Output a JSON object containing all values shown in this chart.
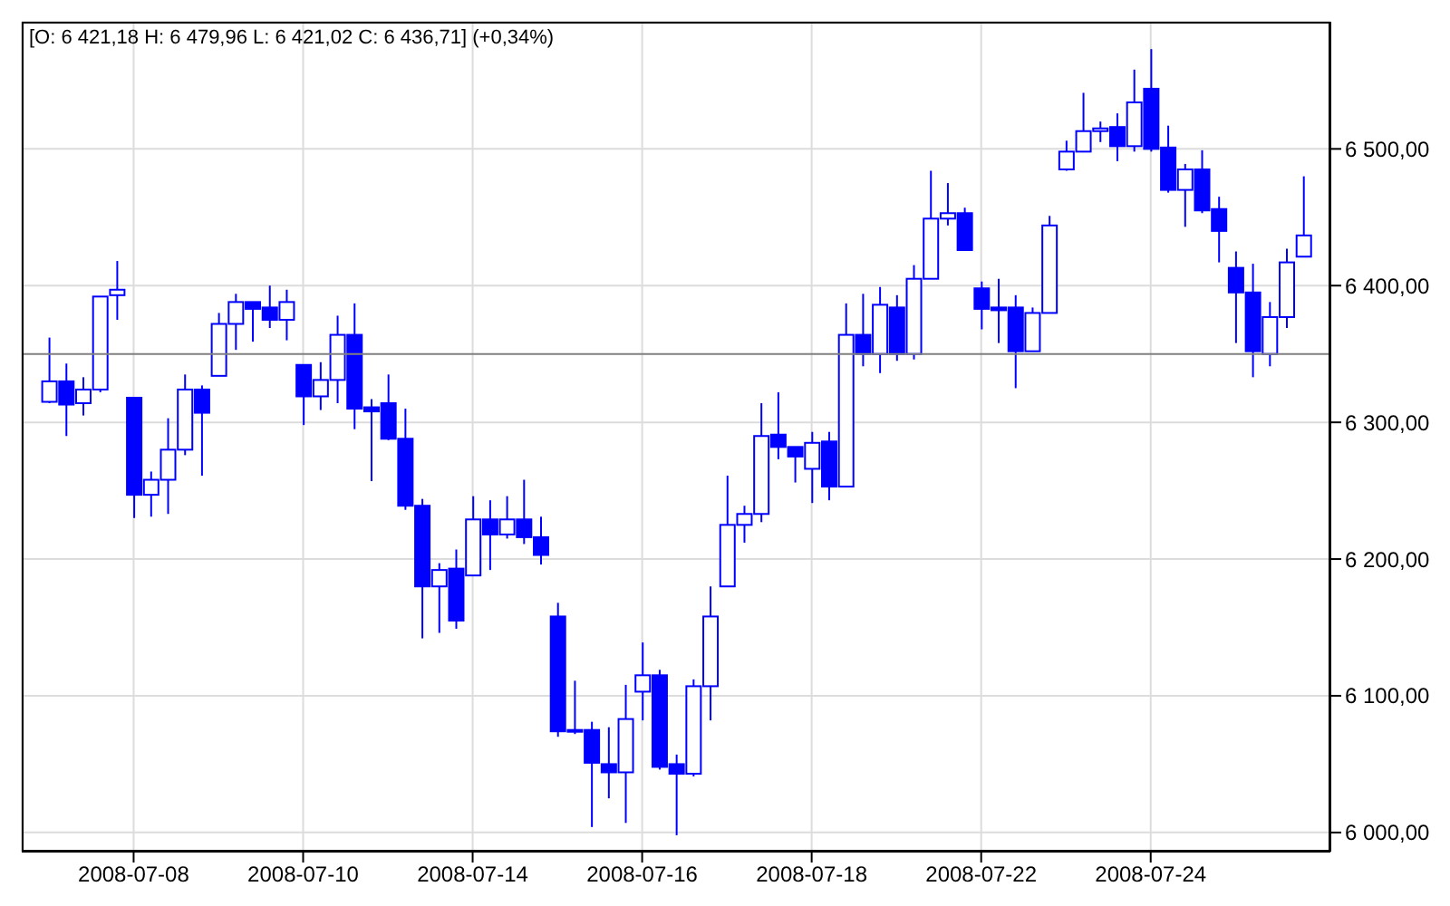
{
  "chart_data": {
    "type": "candlestick",
    "title": "[O: 6 421,18  H: 6 479,96  L: 6 421,02  C: 6 436,71] (+0,34%)",
    "categories": [
      null,
      null,
      null,
      null,
      null,
      "2008-07-08",
      null,
      null,
      null,
      null,
      null,
      null,
      null,
      null,
      null,
      "2008-07-10",
      null,
      null,
      null,
      null,
      null,
      null,
      null,
      null,
      null,
      "2008-07-14",
      null,
      null,
      null,
      null,
      null,
      null,
      null,
      null,
      null,
      "2008-07-16",
      null,
      null,
      null,
      null,
      null,
      null,
      null,
      null,
      null,
      "2008-07-18",
      null,
      null,
      null,
      null,
      null,
      null,
      null,
      null,
      null,
      "2008-07-22",
      null,
      null,
      null,
      null,
      null,
      null,
      null,
      null,
      null,
      "2008-07-24",
      null,
      null,
      null,
      null,
      null,
      null,
      null,
      null,
      null
    ],
    "ohlc": [
      [
        6315,
        6362,
        6314,
        6330
      ],
      [
        6330,
        6343,
        6290,
        6313
      ],
      [
        6314,
        6333,
        6305,
        6324
      ],
      [
        6324,
        6392,
        6322,
        6392
      ],
      [
        6393,
        6418,
        6375,
        6397
      ],
      [
        6318,
        6318,
        6230,
        6247
      ],
      [
        6247,
        6264,
        6231,
        6258
      ],
      [
        6258,
        6303,
        6233,
        6280
      ],
      [
        6280,
        6335,
        6276,
        6324
      ],
      [
        6324,
        6327,
        6261,
        6307
      ],
      [
        6334,
        6380,
        6334,
        6372
      ],
      [
        6372,
        6394,
        6353,
        6388
      ],
      [
        6388,
        6388,
        6359,
        6383
      ],
      [
        6384,
        6400,
        6369,
        6375
      ],
      [
        6375,
        6397,
        6360,
        6388
      ],
      [
        6342,
        6342,
        6298,
        6319
      ],
      [
        6319,
        6344,
        6309,
        6331
      ],
      [
        6331,
        6378,
        6314,
        6364
      ],
      [
        6364,
        6387,
        6295,
        6310
      ],
      [
        6311,
        6317,
        6257,
        6308
      ],
      [
        6314,
        6335,
        6287,
        6288
      ],
      [
        6288,
        6310,
        6236,
        6239
      ],
      [
        6239,
        6244,
        6142,
        6180
      ],
      [
        6180,
        6197,
        6146,
        6192
      ],
      [
        6193,
        6207,
        6149,
        6155
      ],
      [
        6188,
        6246,
        6188,
        6229
      ],
      [
        6229,
        6243,
        6192,
        6218
      ],
      [
        6218,
        6246,
        6215,
        6229
      ],
      [
        6229,
        6258,
        6211,
        6216
      ],
      [
        6216,
        6231,
        6196,
        6203
      ],
      [
        6158,
        6168,
        6070,
        6074
      ],
      [
        6075,
        6111,
        6072,
        6074
      ],
      [
        6075,
        6081,
        6004,
        6051
      ],
      [
        6050,
        6077,
        6025,
        6044
      ],
      [
        6044,
        6108,
        6007,
        6083
      ],
      [
        6103,
        6139,
        6082,
        6115
      ],
      [
        6115,
        6119,
        6046,
        6048
      ],
      [
        6050,
        6057,
        5998,
        6043
      ],
      [
        6043,
        6112,
        6041,
        6107
      ],
      [
        6107,
        6180,
        6082,
        6158
      ],
      [
        6180,
        6261,
        6180,
        6225
      ],
      [
        6225,
        6239,
        6212,
        6233
      ],
      [
        6233,
        6314,
        6227,
        6290
      ],
      [
        6291,
        6322,
        6273,
        6282
      ],
      [
        6282,
        6282,
        6256,
        6275
      ],
      [
        6266,
        6293,
        6241,
        6285
      ],
      [
        6286,
        6293,
        6243,
        6253
      ],
      [
        6253,
        6387,
        6253,
        6364
      ],
      [
        6364,
        6394,
        6341,
        6350
      ],
      [
        6350,
        6399,
        6336,
        6386
      ],
      [
        6384,
        6393,
        6345,
        6350
      ],
      [
        6350,
        6415,
        6346,
        6405
      ],
      [
        6405,
        6484,
        6405,
        6449
      ],
      [
        6449,
        6475,
        6444,
        6453
      ],
      [
        6453,
        6457,
        6426,
        6426
      ],
      [
        6398,
        6403,
        6368,
        6383
      ],
      [
        6384,
        6405,
        6358,
        6382
      ],
      [
        6384,
        6393,
        6325,
        6352
      ],
      [
        6352,
        6384,
        6352,
        6380
      ],
      [
        6380,
        6451,
        6380,
        6444
      ],
      [
        6485,
        6506,
        6484,
        6498
      ],
      [
        6498,
        6541,
        6498,
        6513
      ],
      [
        6513,
        6520,
        6505,
        6515
      ],
      [
        6516,
        6526,
        6491,
        6502
      ],
      [
        6502,
        6558,
        6498,
        6534
      ],
      [
        6544,
        6573,
        6498,
        6500
      ],
      [
        6501,
        6517,
        6468,
        6470
      ],
      [
        6470,
        6489,
        6443,
        6485
      ],
      [
        6485,
        6499,
        6453,
        6455
      ],
      [
        6456,
        6465,
        6417,
        6440
      ],
      [
        6413,
        6425,
        6358,
        6395
      ],
      [
        6395,
        6416,
        6333,
        6352
      ],
      [
        6350,
        6388,
        6341,
        6377
      ],
      [
        6377,
        6427,
        6369,
        6417
      ],
      [
        6421.18,
        6479.96,
        6421.02,
        6436.71
      ]
    ],
    "color": "#0000ff",
    "ylim": [
      5986,
      6593
    ],
    "yticks": [
      {
        "value": 6000,
        "label": "6 000,00"
      },
      {
        "value": 6100,
        "label": "6 100,00"
      },
      {
        "value": 6200,
        "label": "6 200,00"
      },
      {
        "value": 6300,
        "label": "6 300,00"
      },
      {
        "value": 6400,
        "label": "6 400,00"
      },
      {
        "value": 6500,
        "label": "6 500,00"
      }
    ],
    "ref_lines": [
      {
        "axis": "y",
        "value": 6350,
        "color": "#808080"
      }
    ],
    "grid": true
  }
}
